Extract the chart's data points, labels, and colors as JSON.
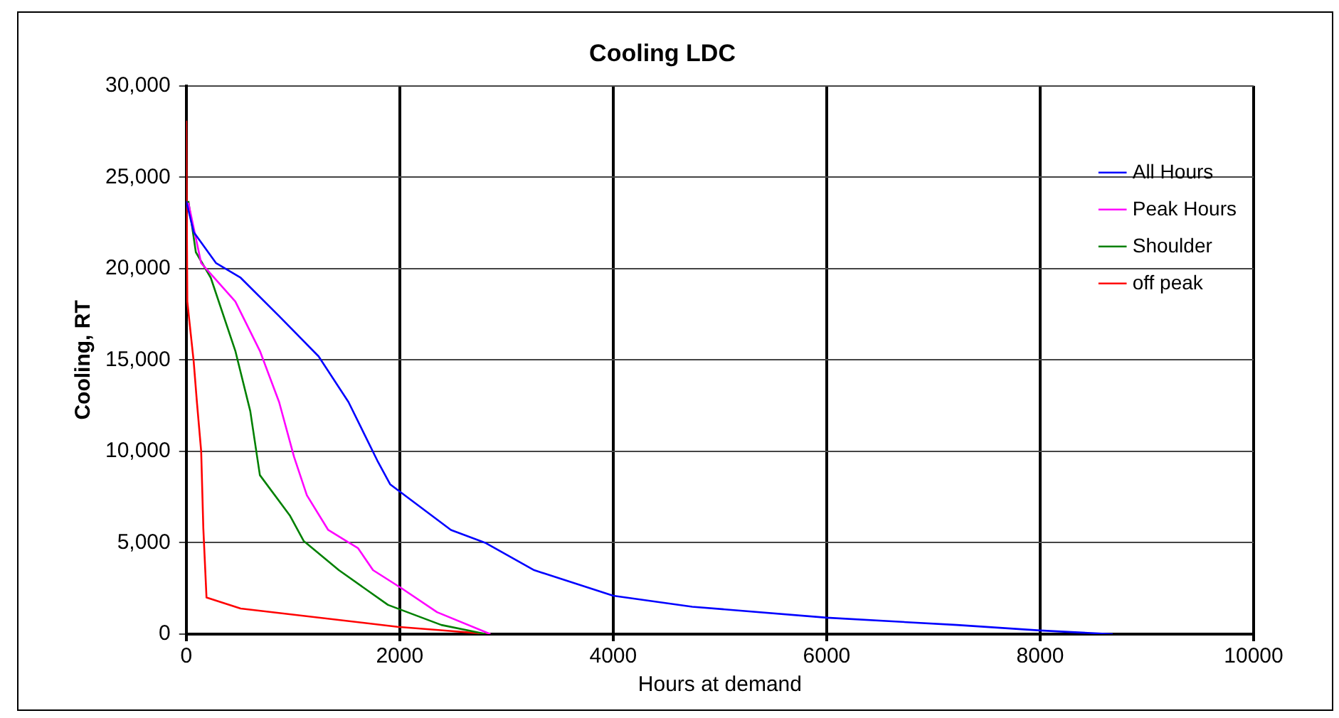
{
  "chart_data": {
    "type": "line",
    "title": "Cooling LDC",
    "xlabel": "Hours at demand",
    "ylabel": "Cooling, RT",
    "xlim": [
      0,
      10000
    ],
    "xticks": [
      0,
      2000,
      4000,
      6000,
      8000,
      10000
    ],
    "ylim": [
      0,
      30000
    ],
    "yticks": [
      {
        "value": 0,
        "label": "0"
      },
      {
        "value": 5000,
        "label": "5,000"
      },
      {
        "value": 10000,
        "label": "10,000"
      },
      {
        "value": 15000,
        "label": "15,000"
      },
      {
        "value": 20000,
        "label": "20,000"
      },
      {
        "value": 25000,
        "label": "25,000"
      },
      {
        "value": 30000,
        "label": "30,000"
      }
    ],
    "grid": true,
    "legend": "top right",
    "marker": "none",
    "line_style": "solid",
    "series": [
      {
        "name": "All Hours",
        "color": "#0000ff",
        "x": [
          0,
          70,
          280,
          510,
          870,
          1240,
          1520,
          1790,
          1910,
          2480,
          2800,
          3260,
          4000,
          4740,
          6000,
          7220,
          8000,
          8680
        ],
        "values": [
          23700,
          22000,
          20300,
          19500,
          17400,
          15200,
          12700,
          9500,
          8200,
          5700,
          5000,
          3500,
          2100,
          1500,
          900,
          500,
          200,
          0
        ]
      },
      {
        "name": "Peak Hours",
        "color": "#ff00ff",
        "x": [
          20,
          140,
          460,
          690,
          870,
          1010,
          1130,
          1330,
          1610,
          1750,
          2020,
          2350,
          2850
        ],
        "values": [
          23600,
          20300,
          18200,
          15500,
          12700,
          9700,
          7600,
          5700,
          4700,
          3500,
          2500,
          1200,
          0
        ]
      },
      {
        "name": "Shoulder",
        "color": "#008000",
        "x": [
          20,
          90,
          230,
          460,
          600,
          690,
          970,
          1100,
          1430,
          1890,
          2390,
          2810
        ],
        "values": [
          23700,
          20900,
          19500,
          15500,
          12200,
          8700,
          6500,
          5100,
          3500,
          1600,
          500,
          0
        ]
      },
      {
        "name": "off peak",
        "color": "#ff0000",
        "x": [
          0,
          10,
          70,
          100,
          140,
          160,
          190,
          510,
          1980,
          2850
        ],
        "values": [
          28100,
          18200,
          14900,
          12700,
          10000,
          5800,
          2000,
          1400,
          400,
          0
        ]
      }
    ]
  }
}
